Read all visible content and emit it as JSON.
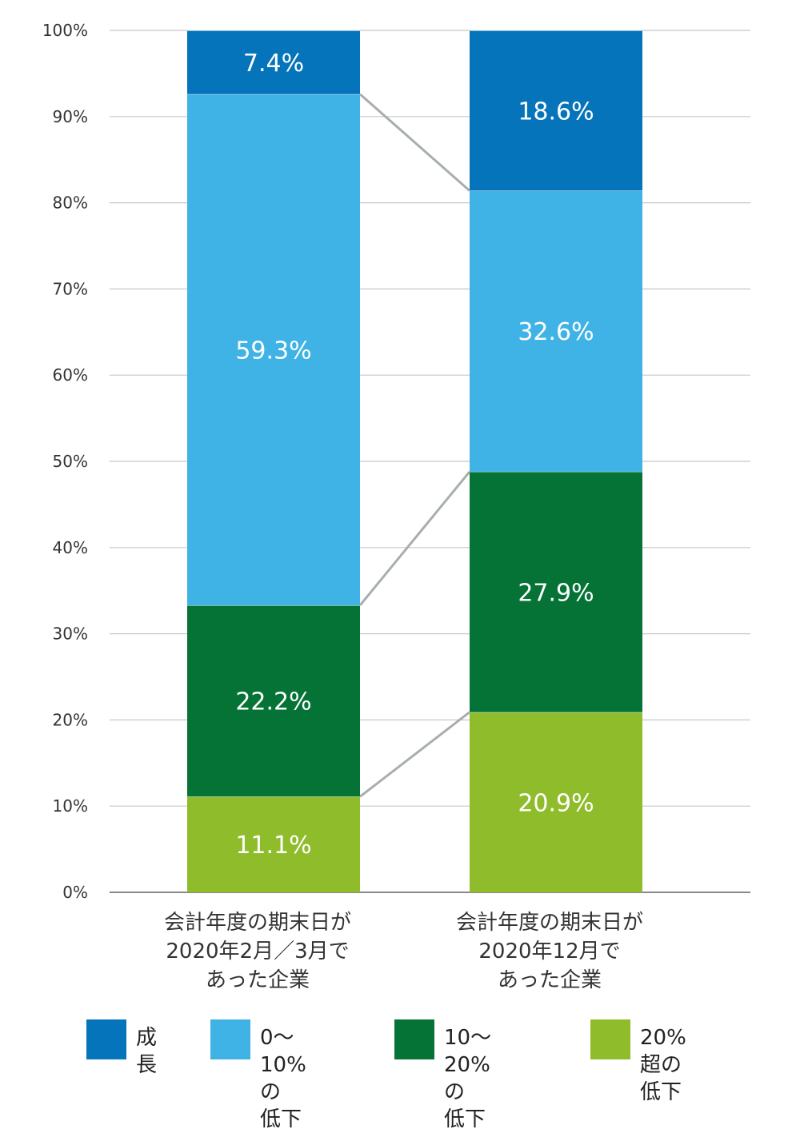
{
  "chart_data": {
    "type": "bar",
    "stacked": true,
    "title": "",
    "xlabel": "",
    "ylabel": "",
    "ylim": [
      0,
      100
    ],
    "yticks": [
      "0%",
      "10%",
      "20%",
      "30%",
      "40%",
      "50%",
      "60%",
      "70%",
      "80%",
      "90%",
      "100%"
    ],
    "categories": [
      [
        "会計年度の期末日が",
        "2020年2月／3月で",
        "あった企業"
      ],
      [
        "会計年度の期末日が",
        "2020年12月で",
        "あった企業"
      ]
    ],
    "series": [
      {
        "name": "20%超の低下",
        "color": "#8fbc2a",
        "values": [
          11.1,
          20.9
        ],
        "labels": [
          "11.1%",
          "20.9%"
        ]
      },
      {
        "name": "10〜20%の低下",
        "color": "#057336",
        "values": [
          22.2,
          27.9
        ],
        "labels": [
          "22.2%",
          "27.9%"
        ]
      },
      {
        "name": "0〜10%の低下",
        "color": "#3fb3e5",
        "values": [
          59.3,
          32.6
        ],
        "labels": [
          "59.3%",
          "32.6%"
        ]
      },
      {
        "name": "成長",
        "color": "#0574bb",
        "values": [
          7.4,
          18.6
        ],
        "labels": [
          "7.4%",
          "18.6%"
        ]
      }
    ],
    "legend": [
      {
        "label": "成長",
        "color": "#0574bb"
      },
      {
        "label": "0〜10%の\n低下",
        "color": "#3fb3e5"
      },
      {
        "label": "10〜20%の\n低下",
        "color": "#057336"
      },
      {
        "label": "20%超の\n低下",
        "color": "#8fbc2a"
      }
    ],
    "connector_color": "#a8adad",
    "grid_color": "#c8c8c8"
  }
}
